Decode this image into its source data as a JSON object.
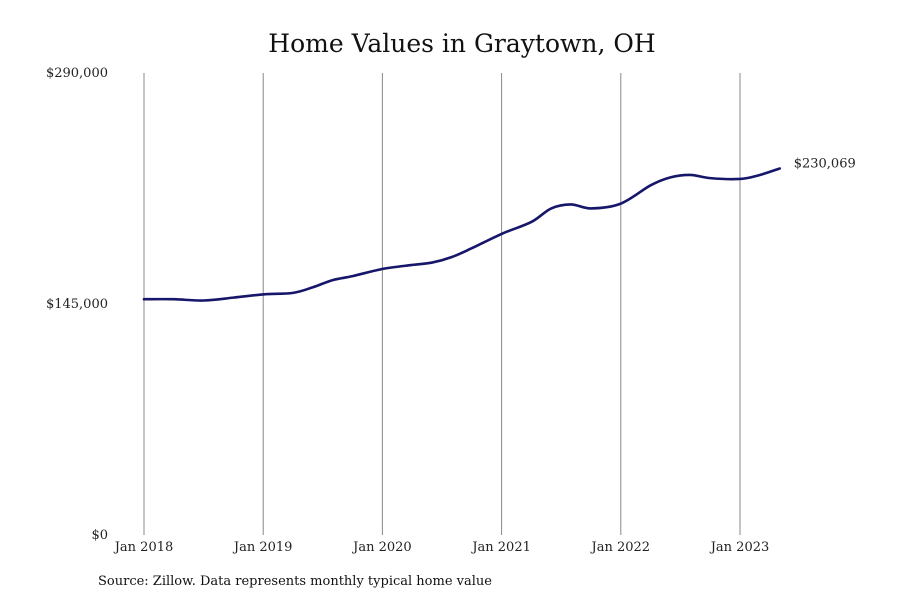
{
  "chart_data": {
    "type": "line",
    "title": "Home Values in Graytown, OH",
    "xlabel": "",
    "ylabel": "",
    "x_ticks": [
      "Jan 2018",
      "Jan 2019",
      "Jan 2020",
      "Jan 2021",
      "Jan 2022",
      "Jan 2023"
    ],
    "y_ticks": [
      "$0",
      "$145,000",
      "$290,000"
    ],
    "y_tick_values": [
      0,
      145000,
      290000
    ],
    "ylim": [
      0,
      290000
    ],
    "xlim": [
      "2018-01",
      "2023-05"
    ],
    "grid": "vertical",
    "series": [
      {
        "color": "#16166b",
        "end_label": "$230,069",
        "points": [
          {
            "x": "2018-01",
            "y": 148000
          },
          {
            "x": "2018-04",
            "y": 148000
          },
          {
            "x": "2018-07",
            "y": 147200
          },
          {
            "x": "2018-10",
            "y": 149000
          },
          {
            "x": "2019-01",
            "y": 151000
          },
          {
            "x": "2019-04",
            "y": 152000
          },
          {
            "x": "2019-06",
            "y": 155500
          },
          {
            "x": "2019-08",
            "y": 160000
          },
          {
            "x": "2019-10",
            "y": 162500
          },
          {
            "x": "2020-01",
            "y": 167000
          },
          {
            "x": "2020-04",
            "y": 169500
          },
          {
            "x": "2020-06",
            "y": 171000
          },
          {
            "x": "2020-08",
            "y": 174500
          },
          {
            "x": "2020-10",
            "y": 180000
          },
          {
            "x": "2021-01",
            "y": 189000
          },
          {
            "x": "2021-04",
            "y": 196500
          },
          {
            "x": "2021-06",
            "y": 205000
          },
          {
            "x": "2021-08",
            "y": 207500
          },
          {
            "x": "2021-10",
            "y": 205000
          },
          {
            "x": "2022-01",
            "y": 208000
          },
          {
            "x": "2022-04",
            "y": 219500
          },
          {
            "x": "2022-06",
            "y": 224500
          },
          {
            "x": "2022-08",
            "y": 226000
          },
          {
            "x": "2022-10",
            "y": 224000
          },
          {
            "x": "2023-01",
            "y": 223500
          },
          {
            "x": "2023-03",
            "y": 226000
          },
          {
            "x": "2023-05",
            "y": 230069
          }
        ]
      }
    ]
  },
  "source": "Source: Zillow. Data represents monthly typical home value"
}
